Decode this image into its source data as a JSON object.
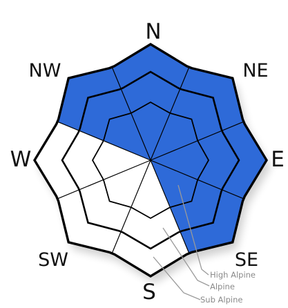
{
  "directions": [
    "N",
    "NE",
    "E",
    "SE",
    "S",
    "SW",
    "W",
    "NW"
  ],
  "elevation_bands": [
    "High Alpine",
    "Alpine",
    "Sub Alpine"
  ],
  "colors": {
    "selected": "#2e6ad8",
    "unselected": "#ffffff",
    "outline": "#000000",
    "leader": "#9a9a9a",
    "legend_text": "#8a8a8a"
  },
  "selected_aspects": {
    "Sub Alpine": [
      "N",
      "NE",
      "E",
      "SE",
      "NW"
    ],
    "Alpine": [
      "N",
      "NE",
      "E",
      "SE",
      "NW"
    ],
    "High Alpine": [
      "N",
      "NE",
      "E",
      "SE",
      "NW"
    ]
  }
}
